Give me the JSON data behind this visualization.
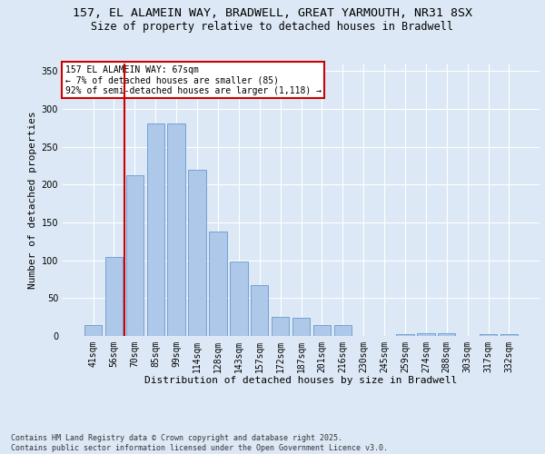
{
  "title1": "157, EL ALAMEIN WAY, BRADWELL, GREAT YARMOUTH, NR31 8SX",
  "title2": "Size of property relative to detached houses in Bradwell",
  "xlabel": "Distribution of detached houses by size in Bradwell",
  "ylabel": "Number of detached properties",
  "categories": [
    "41sqm",
    "56sqm",
    "70sqm",
    "85sqm",
    "99sqm",
    "114sqm",
    "128sqm",
    "143sqm",
    "157sqm",
    "172sqm",
    "187sqm",
    "201sqm",
    "216sqm",
    "230sqm",
    "245sqm",
    "259sqm",
    "274sqm",
    "288sqm",
    "303sqm",
    "317sqm",
    "332sqm"
  ],
  "values": [
    15,
    105,
    213,
    281,
    281,
    220,
    138,
    98,
    67,
    25,
    24,
    14,
    15,
    0,
    0,
    3,
    4,
    4,
    0,
    3,
    2
  ],
  "bar_color": "#adc8e8",
  "bar_edge_color": "#6699cc",
  "vline_color": "#cc0000",
  "annotation_text": "157 EL ALAMEIN WAY: 67sqm\n← 7% of detached houses are smaller (85)\n92% of semi-detached houses are larger (1,118) →",
  "annotation_box_facecolor": "#ffffff",
  "annotation_box_edgecolor": "#cc0000",
  "bg_color": "#dce8f5",
  "footer": "Contains HM Land Registry data © Crown copyright and database right 2025.\nContains public sector information licensed under the Open Government Licence v3.0.",
  "ylim": [
    0,
    360
  ],
  "yticks": [
    0,
    50,
    100,
    150,
    200,
    250,
    300,
    350
  ],
  "title1_fontsize": 9.5,
  "title2_fontsize": 8.5,
  "xlabel_fontsize": 8,
  "ylabel_fontsize": 8,
  "tick_fontsize": 7,
  "footer_fontsize": 6,
  "annot_fontsize": 7
}
